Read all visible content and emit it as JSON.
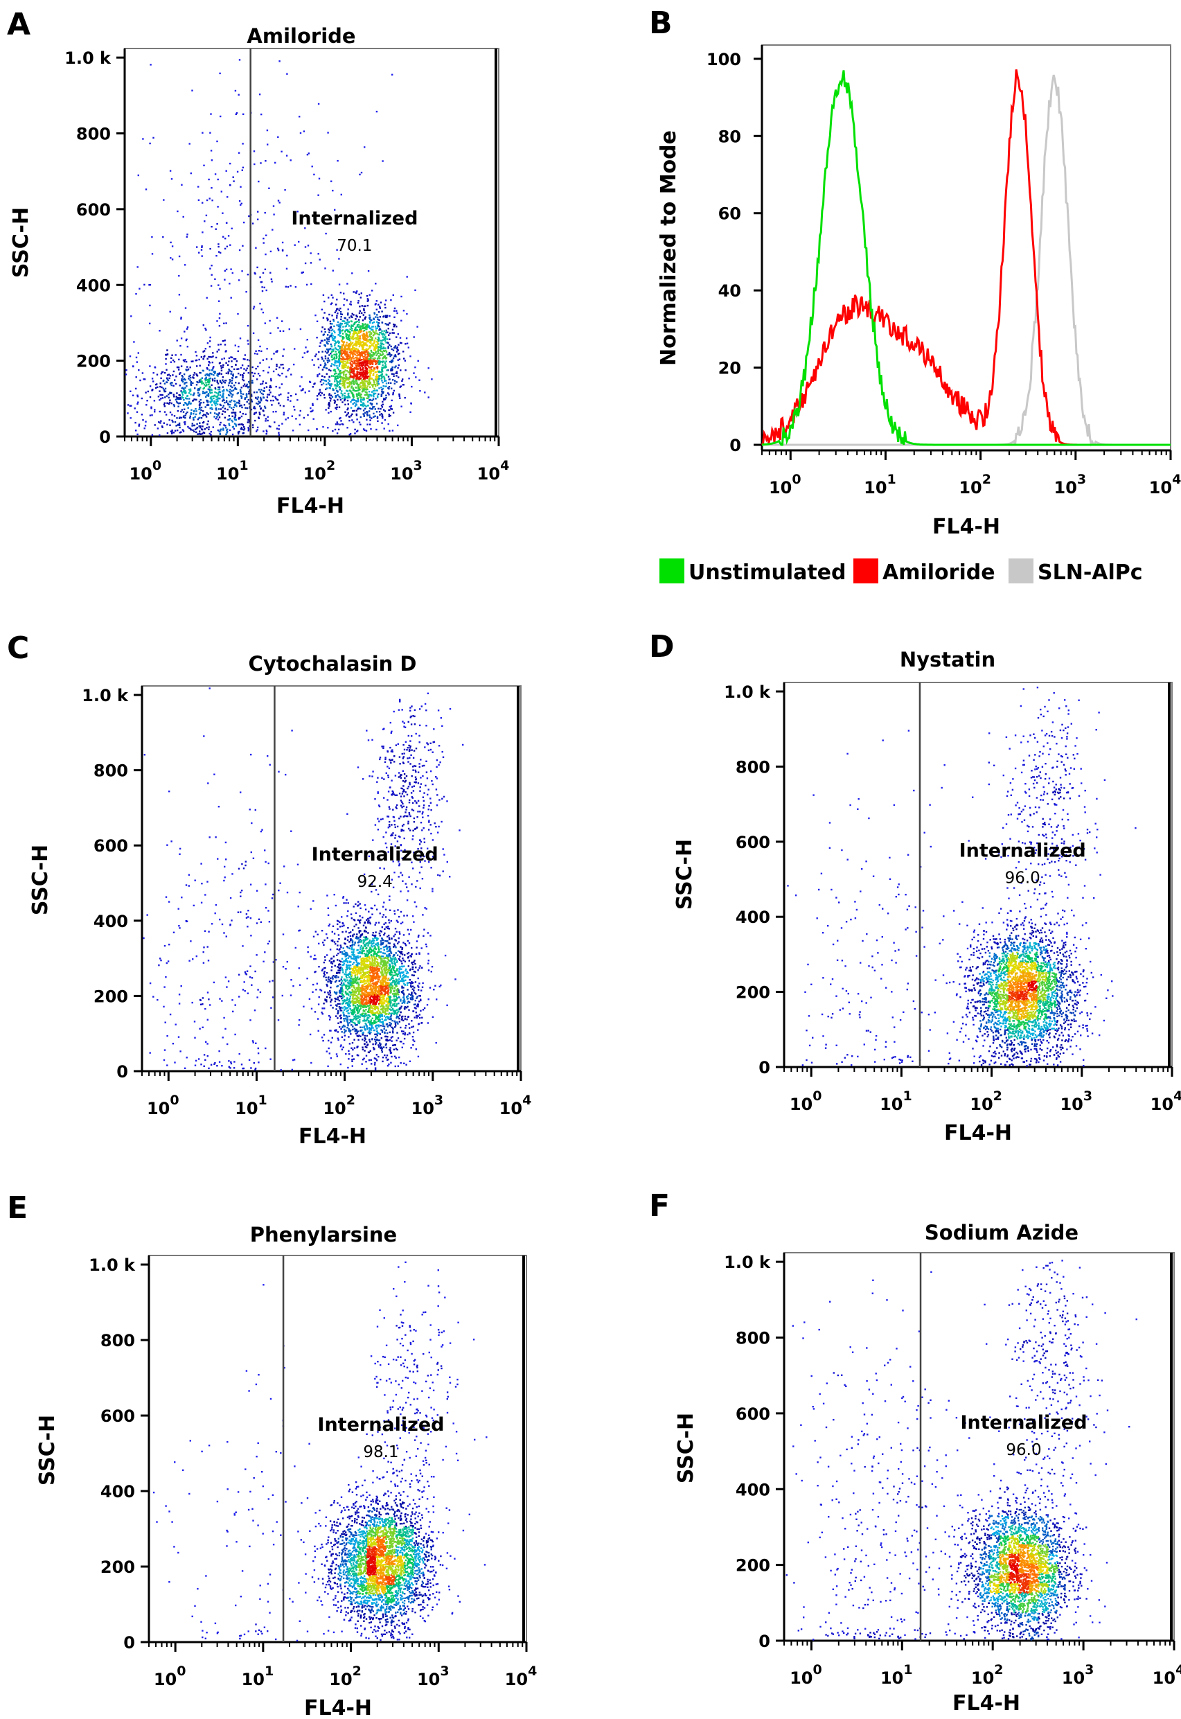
{
  "figure": {
    "panel_letters": [
      "A",
      "B",
      "C",
      "D",
      "E",
      "F"
    ]
  },
  "chart_data": [
    {
      "panel": "A",
      "type": "scatter",
      "title": "Amiloride",
      "xlabel": "FL4-H",
      "ylabel": "SSC-H",
      "x_scale": "log",
      "xlim": [
        0.5,
        10000
      ],
      "ylim": [
        0,
        1024
      ],
      "y_ticks": [
        {
          "value": 0,
          "label": "0"
        },
        {
          "value": 200,
          "label": "200"
        },
        {
          "value": 400,
          "label": "400"
        },
        {
          "value": 600,
          "label": "600"
        },
        {
          "value": 800,
          "label": "800"
        },
        {
          "value": 1000,
          "label": "1.0 k"
        }
      ],
      "x_ticks": [
        {
          "exp": 0,
          "base": "10",
          "sup": "0"
        },
        {
          "exp": 1,
          "base": "10",
          "sup": "1"
        },
        {
          "exp": 2,
          "base": "10",
          "sup": "2"
        },
        {
          "exp": 3,
          "base": "10",
          "sup": "3"
        },
        {
          "exp": 4,
          "base": "10",
          "sup": "4"
        }
      ],
      "gate": {
        "name": "Internalized",
        "value": "70.1",
        "x_threshold": 14
      },
      "populations": [
        {
          "fl4_center": 5,
          "fl4_log_sd": 0.45,
          "ssc_center": 110,
          "ssc_sd": 60,
          "fraction": 0.3
        },
        {
          "fl4_center": 250,
          "fl4_log_sd": 0.22,
          "ssc_center": 200,
          "ssc_sd": 75,
          "fraction": 0.6
        },
        {
          "fl4_center": 10,
          "fl4_log_sd": 0.6,
          "ssc_center": 450,
          "ssc_sd": 250,
          "fraction": 0.1
        }
      ]
    },
    {
      "panel": "B",
      "type": "line",
      "xlabel": "FL4-H",
      "ylabel": "Normalized to Mode",
      "x_scale": "log",
      "xlim": [
        0.5,
        10000
      ],
      "ylim": [
        0,
        100
      ],
      "y_ticks": [
        {
          "value": 0,
          "label": "0"
        },
        {
          "value": 20,
          "label": "20"
        },
        {
          "value": 40,
          "label": "40"
        },
        {
          "value": 60,
          "label": "60"
        },
        {
          "value": 80,
          "label": "80"
        },
        {
          "value": 100,
          "label": "100"
        }
      ],
      "x_ticks": [
        {
          "exp": 0,
          "base": "10",
          "sup": "0"
        },
        {
          "exp": 1,
          "base": "10",
          "sup": "1"
        },
        {
          "exp": 2,
          "base": "10",
          "sup": "2"
        },
        {
          "exp": 3,
          "base": "10",
          "sup": "3"
        },
        {
          "exp": 4,
          "base": "10",
          "sup": "4"
        }
      ],
      "series": [
        {
          "name": "Unstimulated",
          "color": "#00e000",
          "peaks": [
            {
              "x": 3.5,
              "h": 95,
              "w": 0.22
            }
          ]
        },
        {
          "name": "Amiloride",
          "color": "#ff0000",
          "peaks": [
            {
              "x": 250,
              "h": 95,
              "w": 0.14
            },
            {
              "x": 4,
              "h": 30,
              "w": 0.35
            },
            {
              "x": 20,
              "h": 22,
              "w": 0.4
            }
          ]
        },
        {
          "name": "SLN-AlPc",
          "color": "#c8c8c8",
          "peaks": [
            {
              "x": 600,
              "h": 95,
              "w": 0.14
            }
          ]
        }
      ],
      "legend": {
        "position": "bottom",
        "items": [
          "Unstimulated",
          "Amiloride",
          "SLN-AlPc"
        ]
      }
    },
    {
      "panel": "C",
      "type": "scatter",
      "title": "Cytochalasin D",
      "xlabel": "FL4-H",
      "ylabel": "SSC-H",
      "x_scale": "log",
      "xlim": [
        0.5,
        10000
      ],
      "ylim": [
        0,
        1024
      ],
      "y_ticks": [
        {
          "value": 0,
          "label": "0"
        },
        {
          "value": 200,
          "label": "200"
        },
        {
          "value": 400,
          "label": "400"
        },
        {
          "value": 600,
          "label": "600"
        },
        {
          "value": 800,
          "label": "800"
        },
        {
          "value": 1000,
          "label": "1.0 k"
        }
      ],
      "x_ticks": [
        {
          "exp": 0,
          "base": "10",
          "sup": "0"
        },
        {
          "exp": 1,
          "base": "10",
          "sup": "1"
        },
        {
          "exp": 2,
          "base": "10",
          "sup": "2"
        },
        {
          "exp": 3,
          "base": "10",
          "sup": "3"
        },
        {
          "exp": 4,
          "base": "10",
          "sup": "4"
        }
      ],
      "gate": {
        "name": "Internalized",
        "value": "92.4",
        "x_threshold": 16
      },
      "populations": [
        {
          "fl4_center": 200,
          "fl4_log_sd": 0.25,
          "ssc_center": 230,
          "ssc_sd": 85,
          "fraction": 0.8
        },
        {
          "fl4_center": 5,
          "fl4_log_sd": 0.5,
          "ssc_center": 300,
          "ssc_sd": 250,
          "fraction": 0.08
        },
        {
          "fl4_center": 500,
          "fl4_log_sd": 0.2,
          "ssc_center": 720,
          "ssc_sd": 140,
          "fraction": 0.12
        }
      ]
    },
    {
      "panel": "D",
      "type": "scatter",
      "title": "Nystatin",
      "xlabel": "FL4-H",
      "ylabel": "SSC-H",
      "x_scale": "log",
      "xlim": [
        0.5,
        10000
      ],
      "ylim": [
        0,
        1024
      ],
      "y_ticks": [
        {
          "value": 0,
          "label": "0"
        },
        {
          "value": 200,
          "label": "200"
        },
        {
          "value": 400,
          "label": "400"
        },
        {
          "value": 600,
          "label": "600"
        },
        {
          "value": 800,
          "label": "800"
        },
        {
          "value": 1000,
          "label": "1.0 k"
        }
      ],
      "x_ticks": [
        {
          "exp": 0,
          "base": "10",
          "sup": "0"
        },
        {
          "exp": 1,
          "base": "10",
          "sup": "1"
        },
        {
          "exp": 2,
          "base": "10",
          "sup": "2"
        },
        {
          "exp": 3,
          "base": "10",
          "sup": "3"
        },
        {
          "exp": 4,
          "base": "10",
          "sup": "4"
        }
      ],
      "gate": {
        "name": "Internalized",
        "value": "96.0",
        "x_threshold": 16
      },
      "populations": [
        {
          "fl4_center": 220,
          "fl4_log_sd": 0.28,
          "ssc_center": 200,
          "ssc_sd": 80,
          "fraction": 0.85
        },
        {
          "fl4_center": 6,
          "fl4_log_sd": 0.5,
          "ssc_center": 250,
          "ssc_sd": 250,
          "fraction": 0.05
        },
        {
          "fl4_center": 400,
          "fl4_log_sd": 0.25,
          "ssc_center": 680,
          "ssc_sd": 160,
          "fraction": 0.1
        }
      ]
    },
    {
      "panel": "E",
      "type": "scatter",
      "title": "Phenylarsine",
      "xlabel": "FL4-H",
      "ylabel": "SSC-H",
      "x_scale": "log",
      "xlim": [
        0.5,
        10000
      ],
      "ylim": [
        0,
        1024
      ],
      "y_ticks": [
        {
          "value": 0,
          "label": "0"
        },
        {
          "value": 200,
          "label": "200"
        },
        {
          "value": 400,
          "label": "400"
        },
        {
          "value": 600,
          "label": "600"
        },
        {
          "value": 800,
          "label": "800"
        },
        {
          "value": 1000,
          "label": "1.0 k"
        }
      ],
      "x_ticks": [
        {
          "exp": 0,
          "base": "10",
          "sup": "0"
        },
        {
          "exp": 1,
          "base": "10",
          "sup": "1"
        },
        {
          "exp": 2,
          "base": "10",
          "sup": "2"
        },
        {
          "exp": 3,
          "base": "10",
          "sup": "3"
        },
        {
          "exp": 4,
          "base": "10",
          "sup": "4"
        }
      ],
      "gate": {
        "name": "Internalized",
        "value": "98.1",
        "x_threshold": 17
      },
      "populations": [
        {
          "fl4_center": 220,
          "fl4_log_sd": 0.27,
          "ssc_center": 210,
          "ssc_sd": 80,
          "fraction": 0.9
        },
        {
          "fl4_center": 5,
          "fl4_log_sd": 0.5,
          "ssc_center": 250,
          "ssc_sd": 250,
          "fraction": 0.03
        },
        {
          "fl4_center": 500,
          "fl4_log_sd": 0.25,
          "ssc_center": 650,
          "ssc_sd": 180,
          "fraction": 0.07
        }
      ]
    },
    {
      "panel": "F",
      "type": "scatter",
      "title": "Sodium Azide",
      "xlabel": "FL4-H",
      "ylabel": "SSC-H",
      "x_scale": "log",
      "xlim": [
        0.5,
        10000
      ],
      "ylim": [
        0,
        1024
      ],
      "y_ticks": [
        {
          "value": 0,
          "label": "0"
        },
        {
          "value": 200,
          "label": "200"
        },
        {
          "value": 400,
          "label": "400"
        },
        {
          "value": 600,
          "label": "600"
        },
        {
          "value": 800,
          "label": "800"
        },
        {
          "value": 1000,
          "label": "1.0 k"
        }
      ],
      "x_ticks": [
        {
          "exp": 0,
          "base": "10",
          "sup": "0"
        },
        {
          "exp": 1,
          "base": "10",
          "sup": "1"
        },
        {
          "exp": 2,
          "base": "10",
          "sup": "2"
        },
        {
          "exp": 3,
          "base": "10",
          "sup": "3"
        },
        {
          "exp": 4,
          "base": "10",
          "sup": "4"
        }
      ],
      "gate": {
        "name": "Internalized",
        "value": "96.0",
        "x_threshold": 16
      },
      "populations": [
        {
          "fl4_center": 200,
          "fl4_log_sd": 0.27,
          "ssc_center": 190,
          "ssc_sd": 80,
          "fraction": 0.8
        },
        {
          "fl4_center": 6,
          "fl4_log_sd": 0.5,
          "ssc_center": 300,
          "ssc_sd": 260,
          "fraction": 0.1
        },
        {
          "fl4_center": 400,
          "fl4_log_sd": 0.25,
          "ssc_center": 720,
          "ssc_sd": 180,
          "fraction": 0.1
        }
      ]
    }
  ]
}
